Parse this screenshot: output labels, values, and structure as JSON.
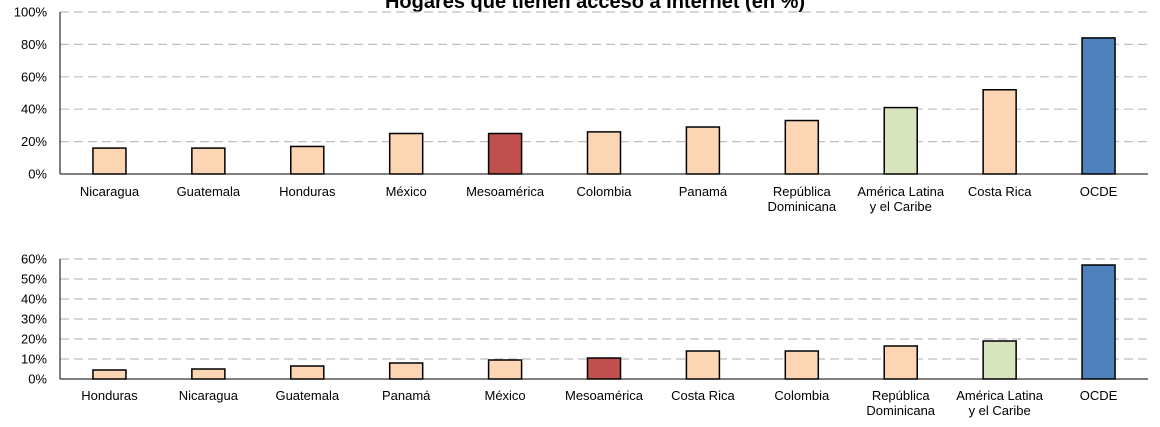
{
  "colors": {
    "default_bar": "#fcd5b4",
    "mesoamerica_bar": "#c0504d",
    "lac_bar": "#d7e4bd",
    "oecd_bar": "#4f81bd",
    "bar_outline": "#000000",
    "gridline": "#bfbfbf"
  },
  "chart_data": [
    {
      "type": "bar",
      "title": "Hogares que tienen acceso a Internet (en %)",
      "xlabel": "",
      "ylabel": "",
      "ylim": [
        0,
        100
      ],
      "yticks": [
        "0%",
        "20%",
        "40%",
        "60%",
        "80%",
        "100%"
      ],
      "grid": true,
      "categories": [
        [
          "Nicaragua"
        ],
        [
          "Guatemala"
        ],
        [
          "Honduras"
        ],
        [
          "México"
        ],
        [
          "Mesoamérica"
        ],
        [
          "Colombia"
        ],
        [
          "Panamá"
        ],
        [
          "República",
          "Dominicana"
        ],
        [
          "América Latina",
          "y el Caribe"
        ],
        [
          "Costa Rica"
        ],
        [
          "OCDE"
        ]
      ],
      "values": [
        16,
        16,
        17,
        25,
        25,
        26,
        29,
        33,
        41,
        52,
        84
      ],
      "highlight": {
        "Mesoamérica": "mesoamerica_bar",
        "América Latina y el Caribe": "lac_bar",
        "OCDE": "oecd_bar"
      }
    },
    {
      "type": "bar",
      "title": "",
      "xlabel": "",
      "ylabel": "",
      "ylim": [
        0,
        60
      ],
      "yticks": [
        "0%",
        "10%",
        "20%",
        "30%",
        "40%",
        "50%",
        "60%"
      ],
      "grid": true,
      "categories": [
        [
          "Honduras"
        ],
        [
          "Nicaragua"
        ],
        [
          "Guatemala"
        ],
        [
          "Panamá"
        ],
        [
          "México"
        ],
        [
          "Mesoamérica"
        ],
        [
          "Costa Rica"
        ],
        [
          "Colombia"
        ],
        [
          "República",
          "Dominicana"
        ],
        [
          "América Latina",
          "y el Caribe"
        ],
        [
          "OCDE"
        ]
      ],
      "values": [
        4.5,
        5,
        6.5,
        8,
        9.5,
        10.5,
        14,
        14,
        16.5,
        19,
        57
      ],
      "highlight": {
        "Mesoamérica": "mesoamerica_bar",
        "América Latina y el Caribe": "lac_bar",
        "OCDE": "oecd_bar"
      }
    }
  ]
}
